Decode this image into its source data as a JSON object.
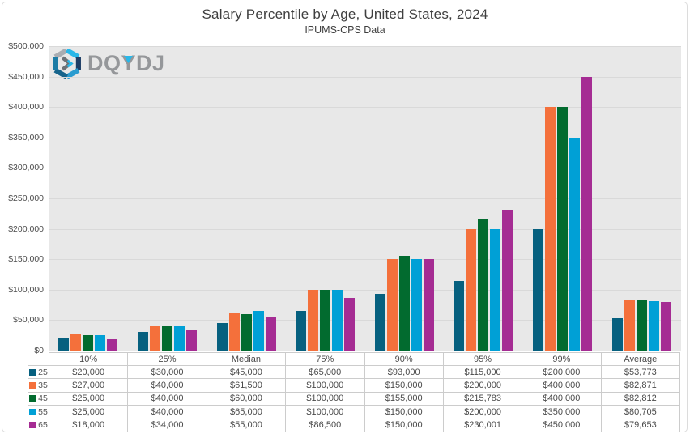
{
  "title": "Salary Percentile by Age, United States, 2024",
  "subtitle": "IPUMS-CPS Data",
  "logo": {
    "text": "DQYDJ",
    "accent_color": "#29b7e8"
  },
  "colors": {
    "plot_background": "#e8e8e8",
    "gridline": "#d9d9d9",
    "title_text": "#3f3f3f",
    "axis_text": "#4c4c4c",
    "table_border": "#cccccc"
  },
  "chart_data": {
    "type": "bar",
    "title": "Salary Percentile by Age, United States, 2024",
    "subtitle": "IPUMS-CPS Data",
    "categories": [
      "10%",
      "25%",
      "Median",
      "75%",
      "90%",
      "95%",
      "99%",
      "Average"
    ],
    "series": [
      {
        "name": "25",
        "color": "#06607f",
        "values": [
          20000,
          30000,
          45000,
          65000,
          93000,
          115000,
          200000,
          53773
        ]
      },
      {
        "name": "35",
        "color": "#f4703b",
        "values": [
          27000,
          40000,
          61500,
          100000,
          150000,
          200000,
          400000,
          82871
        ]
      },
      {
        "name": "45",
        "color": "#026b2f",
        "values": [
          25000,
          40000,
          60000,
          100000,
          155000,
          215783,
          400000,
          82812
        ]
      },
      {
        "name": "55",
        "color": "#00a0d6",
        "values": [
          25000,
          40000,
          65000,
          100000,
          150000,
          200000,
          350000,
          80705
        ]
      },
      {
        "name": "65",
        "color": "#a52c93",
        "values": [
          18000,
          34000,
          55000,
          86500,
          150000,
          230001,
          450000,
          79653
        ]
      }
    ],
    "xlabel": "",
    "ylabel": "",
    "ylim": [
      0,
      500000
    ],
    "ytick_step": 50000,
    "yticks": [
      {
        "v": 0,
        "label": "$0"
      },
      {
        "v": 50000,
        "label": "$50,000"
      },
      {
        "v": 100000,
        "label": "$100,000"
      },
      {
        "v": 150000,
        "label": "$150,000"
      },
      {
        "v": 200000,
        "label": "$200,000"
      },
      {
        "v": 250000,
        "label": "$250,000"
      },
      {
        "v": 300000,
        "label": "$300,000"
      },
      {
        "v": 350000,
        "label": "$350,000"
      },
      {
        "v": 400000,
        "label": "$400,000"
      },
      {
        "v": 450000,
        "label": "$450,000"
      },
      {
        "v": 500000,
        "label": "$500,000"
      }
    ],
    "grid": "horizontal",
    "legend_position": "table-left-column"
  },
  "table": {
    "headers": [
      "10%",
      "25%",
      "Median",
      "75%",
      "90%",
      "95%",
      "99%",
      "Average"
    ],
    "rows": [
      {
        "label": "25",
        "color": "#06607f",
        "values": [
          "$20,000",
          "$30,000",
          "$45,000",
          "$65,000",
          "$93,000",
          "$115,000",
          "$200,000",
          "$53,773"
        ]
      },
      {
        "label": "35",
        "color": "#f4703b",
        "values": [
          "$27,000",
          "$40,000",
          "$61,500",
          "$100,000",
          "$150,000",
          "$200,000",
          "$400,000",
          "$82,871"
        ]
      },
      {
        "label": "45",
        "color": "#026b2f",
        "values": [
          "$25,000",
          "$40,000",
          "$60,000",
          "$100,000",
          "$155,000",
          "$215,783",
          "$400,000",
          "$82,812"
        ]
      },
      {
        "label": "55",
        "color": "#00a0d6",
        "values": [
          "$25,000",
          "$40,000",
          "$65,000",
          "$100,000",
          "$150,000",
          "$200,000",
          "$350,000",
          "$80,705"
        ]
      },
      {
        "label": "65",
        "color": "#a52c93",
        "values": [
          "$18,000",
          "$34,000",
          "$55,000",
          "$86,500",
          "$150,000",
          "$230,001",
          "$450,000",
          "$79,653"
        ]
      }
    ]
  }
}
